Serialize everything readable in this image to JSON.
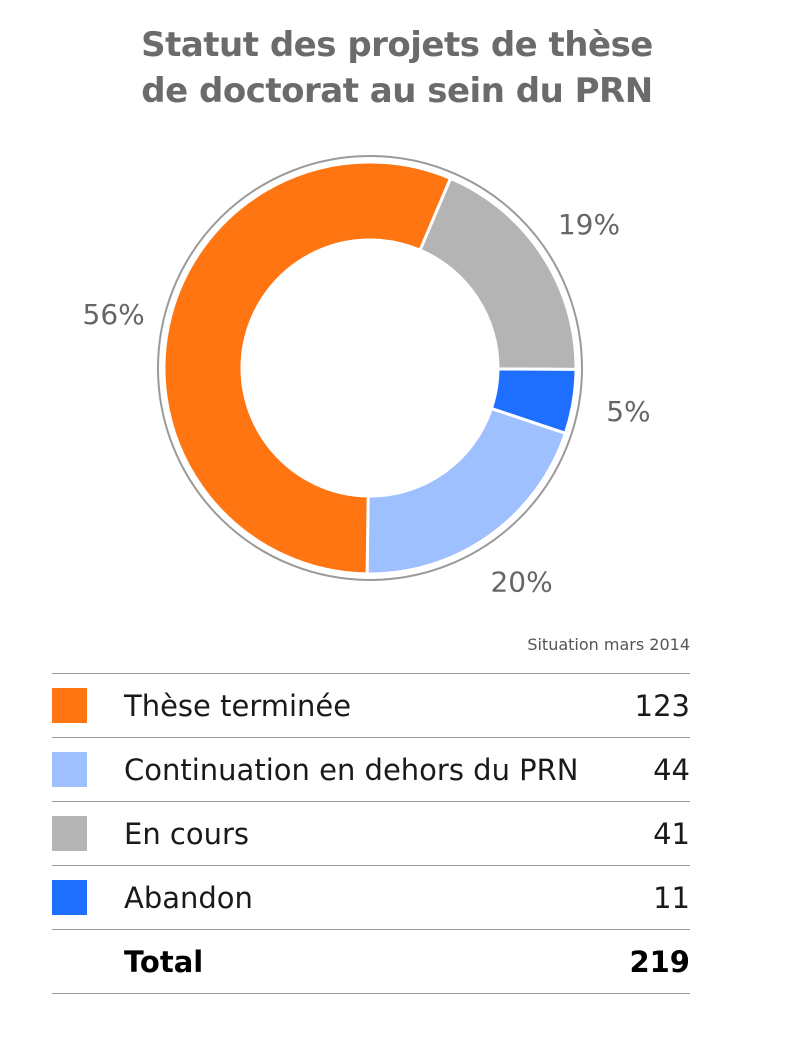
{
  "chart_data": {
    "type": "pie",
    "title_lines": [
      "Statut des projets de thèse",
      "de doctorat au sein du PRN"
    ],
    "note": "Situation mars 2014",
    "slices": [
      {
        "label": "Thèse terminée",
        "value": 123,
        "percent_label": "56%",
        "color": "#ff7512"
      },
      {
        "label": "Continuation en dehors du PRN",
        "value": 44,
        "percent_label": "20%",
        "color": "#9fc0ff"
      },
      {
        "label": "En cours",
        "value": 41,
        "percent_label": "19%",
        "color": "#b4b4b4"
      },
      {
        "label": "Abandon",
        "value": 11,
        "percent_label": "5%",
        "color": "#1e6fff"
      }
    ],
    "total_label": "Total",
    "total_value": 219
  }
}
